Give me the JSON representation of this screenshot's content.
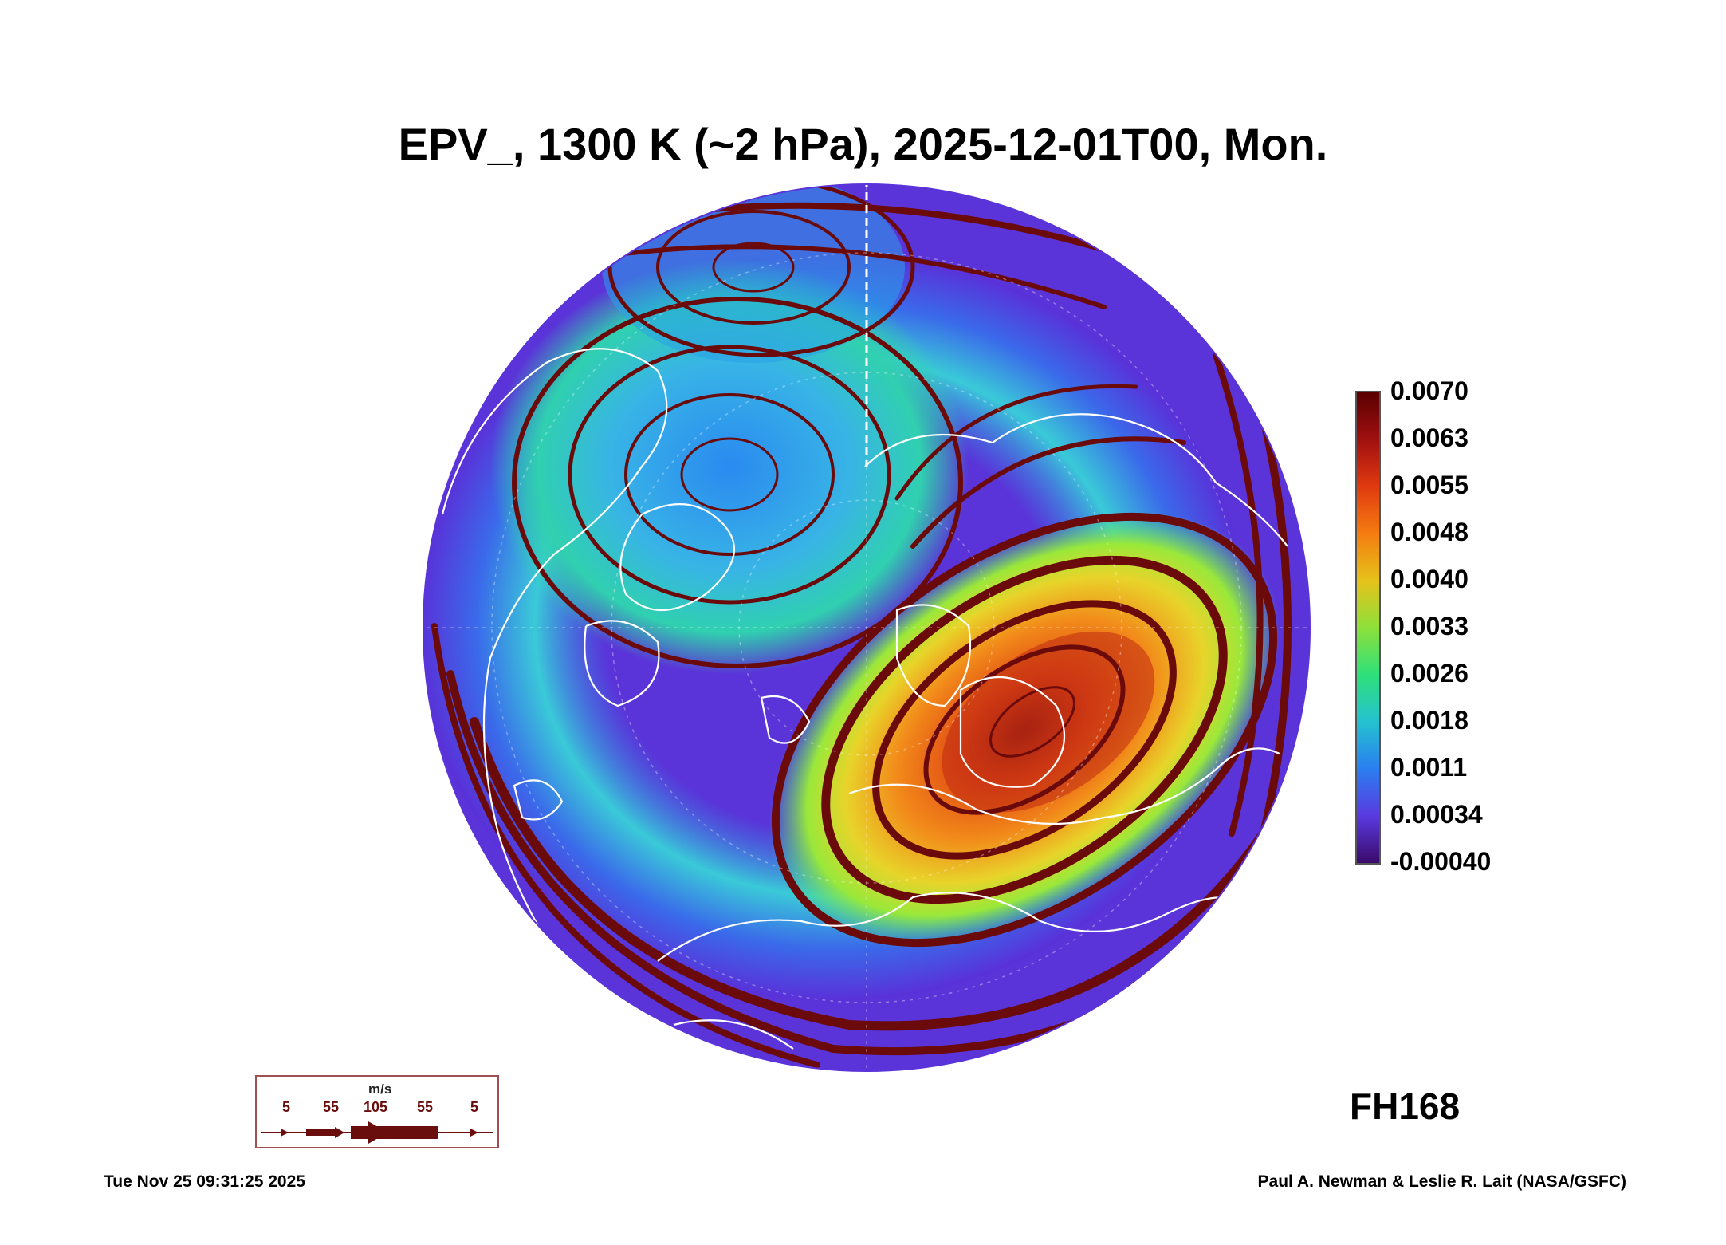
{
  "title": "EPV_, 1300 K (~2 hPa), 2025-12-01T00, Mon.",
  "forecast_hour": "FH168",
  "colorbar": {
    "labels": [
      "0.0070",
      "0.0063",
      "0.0055",
      "0.0048",
      "0.0040",
      "0.0033",
      "0.0026",
      "0.0018",
      "0.0011",
      "0.00034",
      "-0.00040"
    ],
    "min": -0.0004,
    "max": 0.007,
    "colors": [
      "#5a0000",
      "#a01010",
      "#e03a10",
      "#f47c10",
      "#e6c21a",
      "#8ee03a",
      "#2ee07a",
      "#24c2d0",
      "#2a7ef0",
      "#5a3ae0",
      "#3a0a6a"
    ]
  },
  "wind_legend": {
    "unit": "m/s",
    "labels": [
      "5",
      "55",
      "105",
      "55",
      "5"
    ],
    "color": "#6a0d0d"
  },
  "timestamp": "Tue Nov 25 09:31:25 2025",
  "credit": "Paul A. Newman & Leslie R. Lait (NASA/GSFC)",
  "map_colors": {
    "background": "#5a34d8",
    "streamline": "#6a0a0a",
    "coastline": "#ffffff"
  }
}
